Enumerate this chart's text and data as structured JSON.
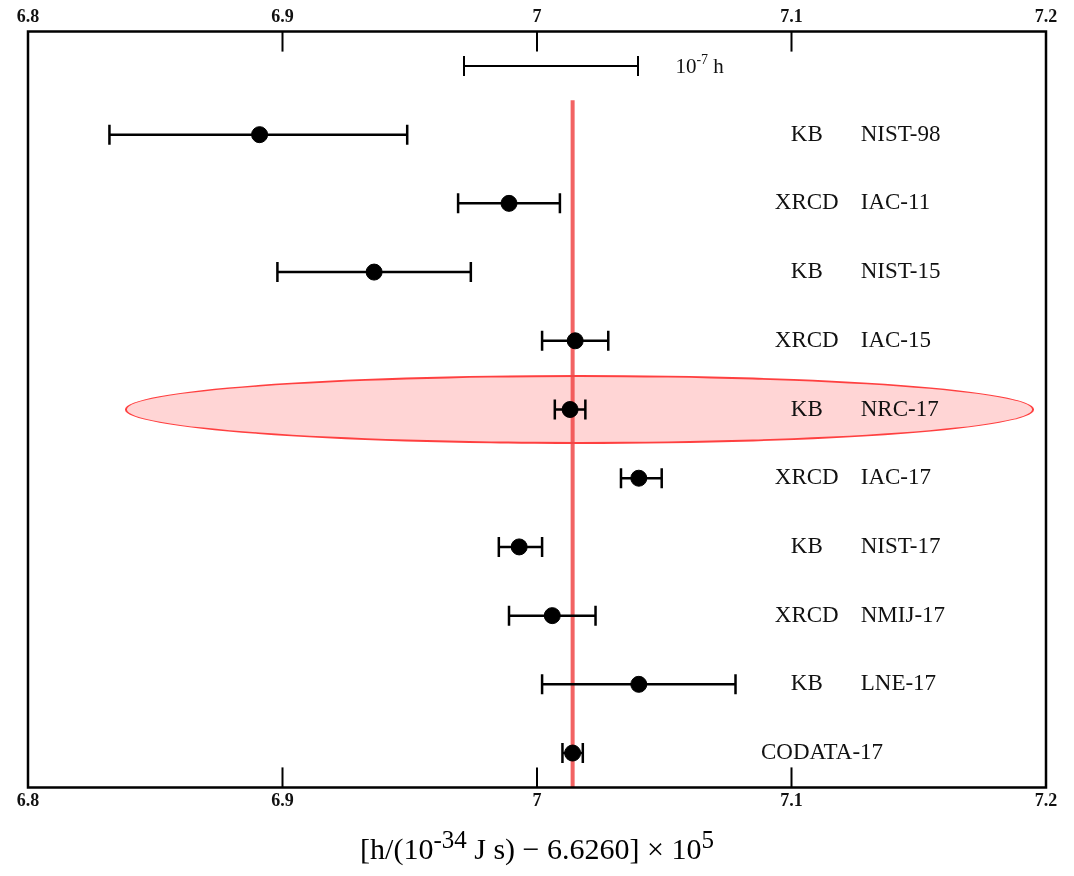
{
  "chart_data": {
    "type": "scatter",
    "orientation": "horizontal",
    "categories": [
      null,
      "NIST-98",
      "IAC-11",
      "NIST-15",
      "IAC-15",
      "NRC-17",
      "IAC-17",
      "NIST-17",
      "NMIJ-17",
      "LNE-17",
      "CODATA-17"
    ],
    "series": [
      {
        "color": "#000000",
        "marker": "circle",
        "values": [
          null,
          6.891,
          6.989,
          6.936,
          7.015,
          7.013,
          7.04,
          6.993,
          7.006,
          7.04,
          7.014
        ],
        "errors": [
          null,
          [
            6.832,
            6.949
          ],
          [
            6.969,
            7.009
          ],
          [
            6.898,
            6.974
          ],
          [
            7.002,
            7.028
          ],
          [
            7.007,
            7.019
          ],
          [
            7.033,
            7.049
          ],
          [
            6.985,
            7.002
          ],
          [
            6.989,
            7.023
          ],
          [
            7.002,
            7.078
          ],
          [
            7.01,
            7.018
          ]
        ]
      }
    ],
    "xlim": [
      6.8,
      7.2
    ],
    "xticks": [
      6.8,
      6.9,
      7.0,
      7.1,
      7.2
    ],
    "x2lim": [
      6.8,
      7.2
    ],
    "x2ticks": [
      6.8,
      6.9,
      7.0,
      7.1,
      7.2
    ],
    "xlabel": "[h/(10$^{-34}$ J s) − 6.6260] × 10$^{5}$",
    "ref_lines": [
      {
        "axis": "x",
        "value": 7.014,
        "color": "#f04848"
      }
    ],
    "annotations": [
      "10$^{-7}$ h",
      "KB",
      "XRCD",
      "KB",
      "XRCD",
      "KB",
      "XRCD",
      "KB",
      "XRCD",
      "KB"
    ],
    "grid": false
  }
}
